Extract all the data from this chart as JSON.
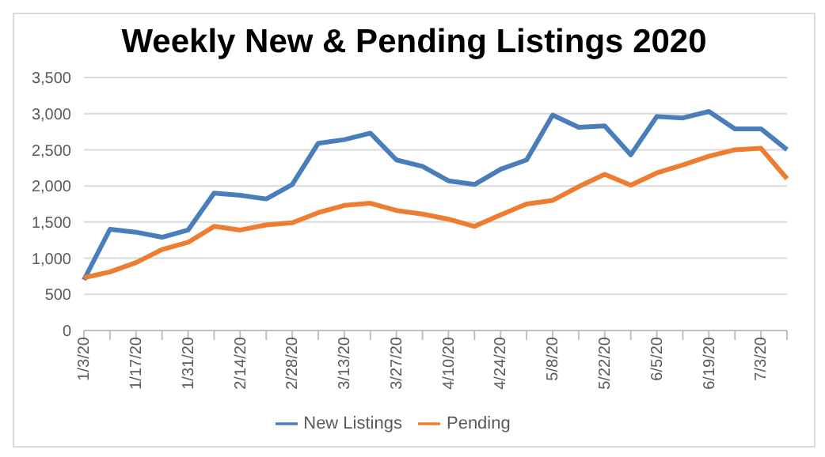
{
  "chart_data": {
    "type": "line",
    "title": "Weekly New & Pending Listings 2020",
    "categories": [
      "1/3/20",
      null,
      "1/17/20",
      null,
      "1/31/20",
      null,
      "2/14/20",
      null,
      "2/28/20",
      null,
      "3/13/20",
      null,
      "3/27/20",
      null,
      "4/10/20",
      null,
      "4/24/20",
      null,
      "5/8/20",
      null,
      "5/22/20",
      null,
      "6/5/20",
      null,
      "6/19/20",
      null,
      "7/3/20",
      null
    ],
    "series": [
      {
        "name": "New Listings",
        "color": "#4a7ebb",
        "values": [
          700,
          1400,
          1360,
          1290,
          1390,
          1900,
          1870,
          1820,
          2020,
          2590,
          2640,
          2730,
          2360,
          2270,
          2070,
          2020,
          2230,
          2360,
          2980,
          2810,
          2830,
          2430,
          2960,
          2940,
          3030,
          2790,
          2790,
          2500
        ]
      },
      {
        "name": "Pending",
        "color": "#ed7d31",
        "values": [
          730,
          810,
          940,
          1120,
          1220,
          1440,
          1390,
          1460,
          1490,
          1630,
          1730,
          1760,
          1660,
          1610,
          1540,
          1440,
          1600,
          1750,
          1800,
          1990,
          2160,
          2010,
          2180,
          2290,
          2410,
          2500,
          2520,
          2100
        ]
      }
    ],
    "ylim": [
      0,
      3500
    ],
    "yticks": [
      {
        "value": 0,
        "label": "0"
      },
      {
        "value": 500,
        "label": "500"
      },
      {
        "value": 1000,
        "label": "1,000"
      },
      {
        "value": 1500,
        "label": "1,500"
      },
      {
        "value": 2000,
        "label": "2,000"
      },
      {
        "value": 2500,
        "label": "2,500"
      },
      {
        "value": 3000,
        "label": "3,000"
      },
      {
        "value": 3500,
        "label": "3,500"
      }
    ],
    "grid": "y",
    "legend": "bottom",
    "marker": "none",
    "line_style": "solid"
  }
}
